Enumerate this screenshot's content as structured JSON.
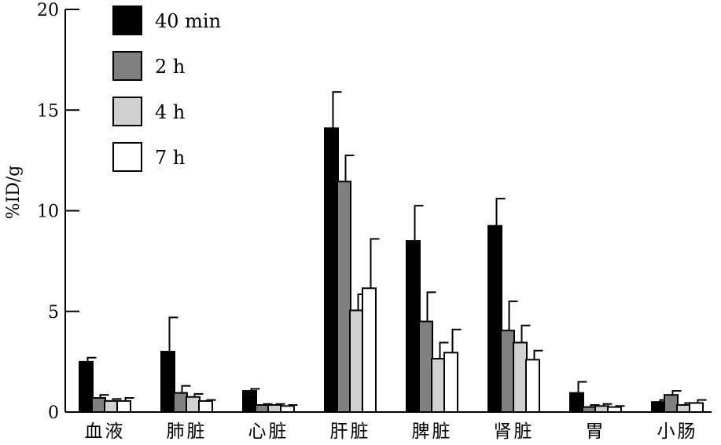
{
  "chart_data": {
    "type": "bar",
    "title": "",
    "xlabel": "",
    "ylabel": "%ID/g",
    "ylim": [
      0,
      20
    ],
    "yticks": [
      0,
      5,
      10,
      15,
      20
    ],
    "grid": false,
    "legend_position": "top-left",
    "categories": [
      "血液",
      "肺脏",
      "心脏",
      "肝脏",
      "脾脏",
      "肾脏",
      "胃",
      "小肠"
    ],
    "series": [
      {
        "name": "40 min",
        "color": "#000000",
        "values": [
          2.5,
          3.0,
          1.05,
          14.1,
          8.5,
          9.25,
          0.95,
          0.5
        ],
        "errors": [
          0.2,
          1.7,
          0.1,
          1.8,
          1.75,
          1.35,
          0.55,
          0.1
        ]
      },
      {
        "name": "2 h",
        "color": "#808080",
        "values": [
          0.7,
          0.95,
          0.35,
          11.45,
          4.5,
          4.05,
          0.25,
          0.85
        ],
        "errors": [
          0.15,
          0.35,
          0.05,
          1.3,
          1.45,
          1.45,
          0.1,
          0.2
        ]
      },
      {
        "name": "4 h",
        "color": "#d0d0d0",
        "values": [
          0.55,
          0.75,
          0.35,
          5.05,
          2.65,
          3.45,
          0.3,
          0.35
        ],
        "errors": [
          0.1,
          0.15,
          0.05,
          0.8,
          0.8,
          0.85,
          0.1,
          0.1
        ]
      },
      {
        "name": "7 h",
        "color": "#ffffff",
        "values": [
          0.55,
          0.55,
          0.3,
          6.15,
          2.95,
          2.6,
          0.25,
          0.45
        ],
        "errors": [
          0.15,
          0.05,
          0.05,
          2.45,
          1.15,
          0.45,
          0.05,
          0.15
        ]
      }
    ]
  }
}
